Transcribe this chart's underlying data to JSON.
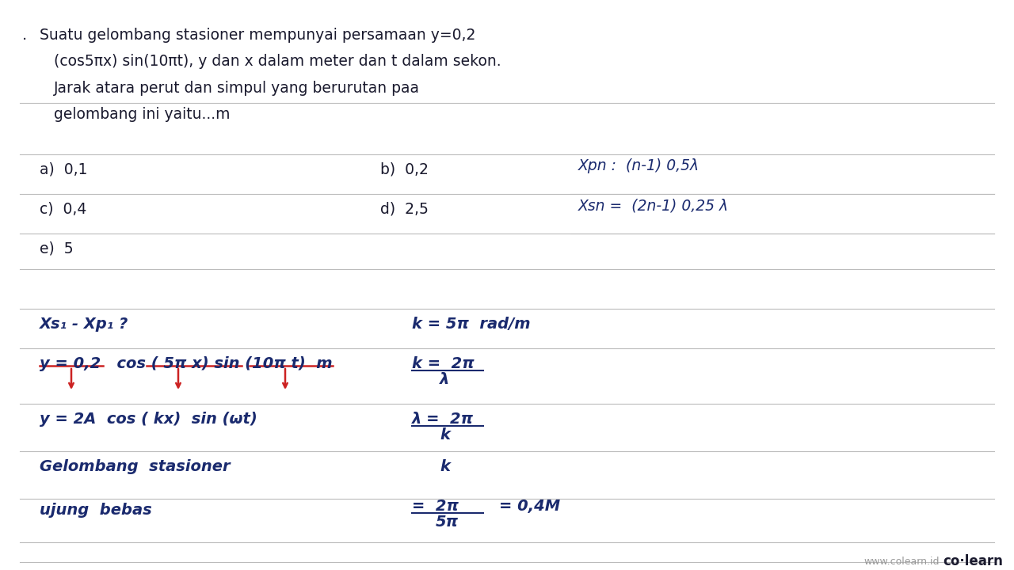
{
  "bg_color": "#ffffff",
  "dark": "#1a1a2e",
  "blue": "#1a2a6e",
  "red": "#cc2222",
  "figsize": [
    12.8,
    7.2
  ],
  "dpi": 100,
  "q_bullet": ".",
  "q1": "Suatu gelombang stasioner mempunyai persamaan y=0,2",
  "q2": "(cos5πx) sin(10πt), y dan x dalam meter dan t dalam sekon.",
  "q3": "Jarak atara perut dan simpul yang berurutan paa",
  "q4": "gelombang ini yaitu...m",
  "opt_a": "a)  0,1",
  "opt_b": "b)  0,2",
  "opt_c": "c)  0,4",
  "opt_d": "d)  2,5",
  "opt_e": "e)  5",
  "xpn": "Xpn :  (n-1) 0,5λ",
  "xsn": "Xsn =  (2n-1) 0,25 λ",
  "sol1": "Xs₁ - Xp₁ ?",
  "sol_k1": "k = 5π  rad/m",
  "sol2": "y = 0,2   cos ( 5π x) sin (10π t)  m",
  "sol_k2n": "k =  2π",
  "sol_k2d": "λ",
  "sol3": "y = 2A  cos ( kx)  sin (ωt)",
  "sol_ln": "λ =  2π",
  "sol_ld": "k",
  "sol4": "Gelombang  stasioner",
  "sol5": "ujung  bebas",
  "sol_vn": "=  2π",
  "sol_vd": "5π",
  "sol_vr": "= 0,4M",
  "wm1": "www.colearn.id",
  "wm2": "co·learn"
}
